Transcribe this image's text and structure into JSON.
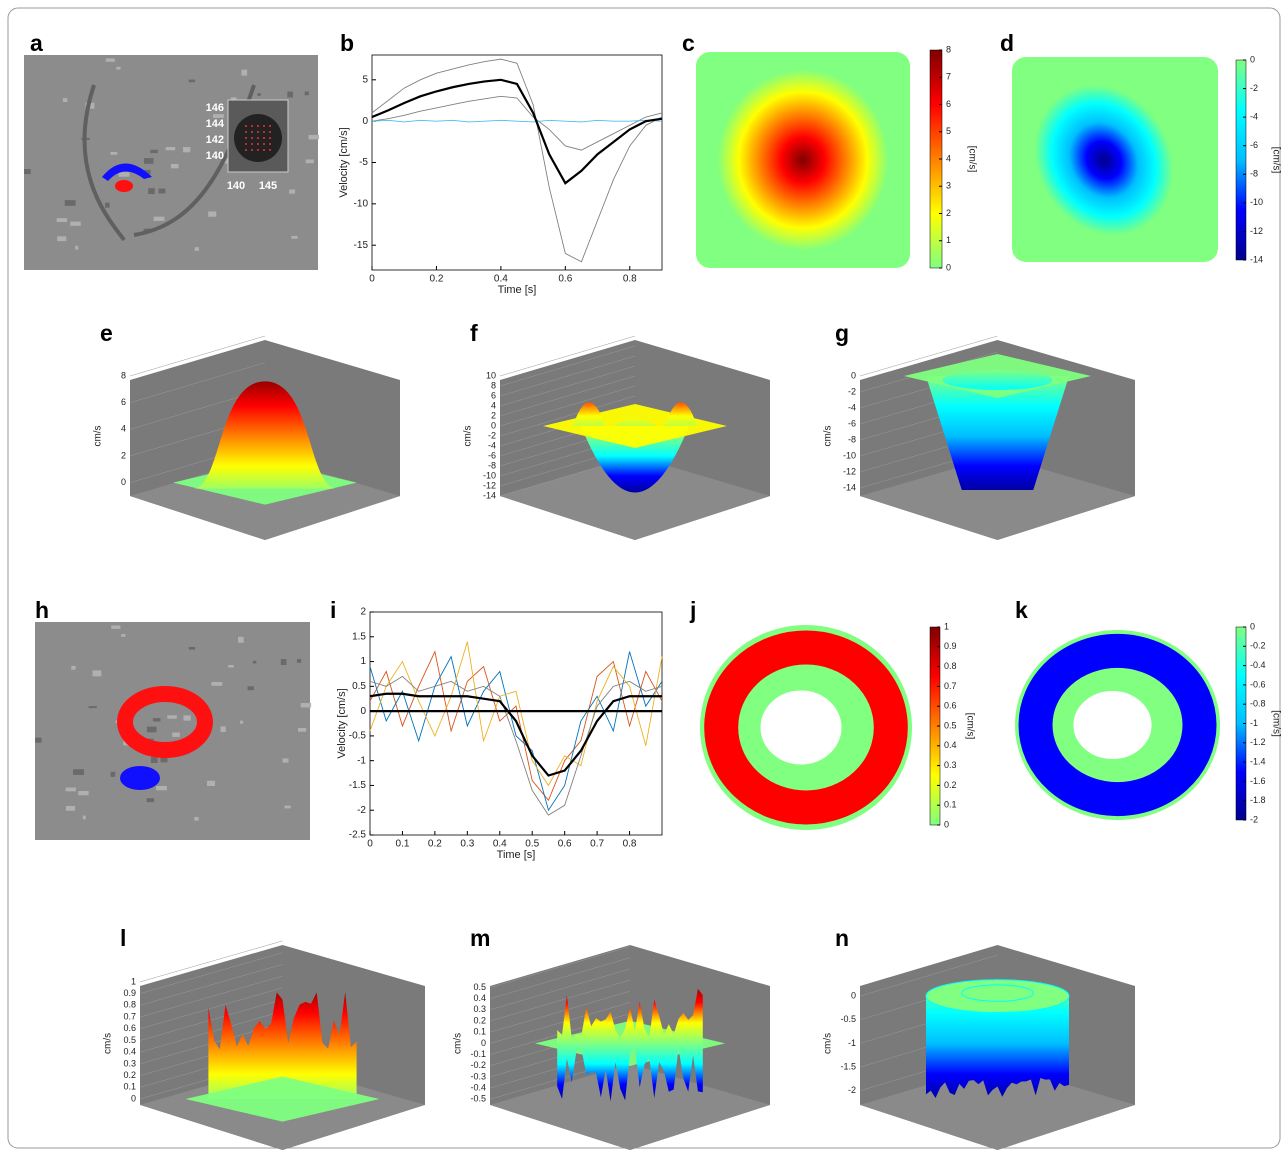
{
  "chart_data": [
    {
      "type": "image",
      "label": "a",
      "inset_xticks": [
        140,
        145
      ],
      "inset_yticks": [
        146,
        144,
        142,
        140
      ]
    },
    {
      "type": "line",
      "label": "b",
      "xlabel": "Time [s]",
      "ylabel": "Velocity [cm/s]",
      "xlim": [
        0,
        0.9
      ],
      "ylim": [
        -18,
        8
      ],
      "xticks": [
        0,
        0.2,
        0.4,
        0.6,
        0.8
      ],
      "yticks": [
        -15,
        -10,
        -5,
        0,
        5
      ],
      "x": [
        0,
        0.05,
        0.1,
        0.15,
        0.2,
        0.25,
        0.3,
        0.35,
        0.4,
        0.45,
        0.5,
        0.55,
        0.6,
        0.65,
        0.7,
        0.75,
        0.8,
        0.85,
        0.9
      ],
      "series": [
        {
          "color": "#808080",
          "values": [
            1,
            2.5,
            4,
            5,
            5.8,
            6.3,
            6.8,
            7.2,
            7.5,
            7,
            2,
            -8,
            -16,
            -17,
            -12,
            -7,
            -3,
            -0.5,
            0.5
          ]
        },
        {
          "color": "#808080",
          "values": [
            0,
            0.3,
            0.7,
            1.2,
            1.6,
            2,
            2.4,
            2.7,
            3,
            2.8,
            0.5,
            -1,
            -3,
            -3.5,
            -2.5,
            -1.5,
            -0.5,
            0.5,
            1
          ]
        },
        {
          "color": "#4dbeee",
          "values": [
            0,
            0.1,
            -0.1,
            0.1,
            0,
            0.1,
            -0.1,
            0,
            0.1,
            0,
            -0.1,
            0.1,
            0,
            -0.1,
            0.1,
            0,
            0,
            0.1,
            0
          ]
        },
        {
          "color": "#000000",
          "values": [
            0.5,
            1.3,
            2.2,
            3,
            3.6,
            4.1,
            4.5,
            4.8,
            5,
            4.5,
            1,
            -4,
            -7.5,
            -6,
            -4,
            -2.5,
            -1,
            0,
            0.3
          ]
        }
      ]
    },
    {
      "type": "heatmap",
      "label": "c",
      "colorbar_label": "[cm/s]",
      "clim": [
        0,
        8
      ],
      "cticks": [
        0,
        1,
        2,
        3,
        4,
        5,
        6,
        7,
        8
      ],
      "colormap": [
        "#80ff80",
        "#ffff00",
        "#ff8000",
        "#ff0000",
        "#800000"
      ]
    },
    {
      "type": "heatmap",
      "label": "d",
      "colorbar_label": "[cm/s]",
      "clim": [
        -14,
        0
      ],
      "cticks": [
        -14,
        -12,
        -10,
        -8,
        -6,
        -4,
        -2,
        0
      ],
      "colormap": [
        "#00008b",
        "#0000ff",
        "#00bfff",
        "#00ffff",
        "#80ff80"
      ]
    },
    {
      "type": "surface",
      "label": "e",
      "zlabel": "cm/s",
      "zlim": [
        -1,
        8
      ],
      "zticks": [
        0,
        2,
        4,
        6,
        8
      ],
      "colormap": [
        "#80ff80",
        "#ffff00",
        "#ff8000",
        "#ff0000",
        "#800000"
      ]
    },
    {
      "type": "surface",
      "label": "f",
      "zlabel": "cm/s",
      "zlim": [
        -14,
        10
      ],
      "zticks": [
        10,
        8,
        6,
        4,
        2,
        0,
        -2,
        -4,
        -6,
        -8,
        -10,
        -12,
        -14
      ],
      "colormap": [
        "#00008b",
        "#0000ff",
        "#00ffff",
        "#80ff80",
        "#ffff00",
        "#ff0000",
        "#800000"
      ]
    },
    {
      "type": "surface",
      "label": "g",
      "zlabel": "cm/s",
      "zlim": [
        -15,
        0
      ],
      "zticks": [
        0,
        -2,
        -4,
        -6,
        -8,
        -10,
        -12,
        -14
      ],
      "colormap": [
        "#00008b",
        "#0000ff",
        "#00bfff",
        "#00ffff",
        "#80ff80"
      ]
    },
    {
      "type": "image",
      "label": "h"
    },
    {
      "type": "line",
      "label": "i",
      "xlabel": "Time [s]",
      "ylabel": "Velocity [cm/s]",
      "xlim": [
        0,
        0.9
      ],
      "ylim": [
        -2.5,
        2
      ],
      "xticks": [
        0,
        0.1,
        0.2,
        0.3,
        0.4,
        0.5,
        0.6,
        0.7,
        0.8
      ],
      "yticks": [
        -2.5,
        -2,
        -1.5,
        -1,
        -0.5,
        0,
        0.5,
        1,
        1.5,
        2
      ],
      "x": [
        0,
        0.05,
        0.1,
        0.15,
        0.2,
        0.25,
        0.3,
        0.35,
        0.4,
        0.45,
        0.5,
        0.55,
        0.6,
        0.65,
        0.7,
        0.75,
        0.8,
        0.85,
        0.9
      ],
      "series": [
        {
          "color": "#d95319",
          "values": [
            0.2,
            0.8,
            -0.3,
            0.5,
            1.2,
            -0.4,
            0.6,
            0.9,
            -0.2,
            0.1,
            -1.4,
            -1.8,
            -1,
            -0.6,
            0.7,
            1,
            -0.3,
            0.8,
            0.2
          ]
        },
        {
          "color": "#0072bd",
          "values": [
            0.9,
            -0.2,
            0.4,
            -0.6,
            0.5,
            1.1,
            -0.3,
            0.4,
            0.8,
            -0.5,
            -0.8,
            -2,
            -1.5,
            -0.2,
            0.3,
            -0.4,
            1.2,
            0.1,
            0.6
          ]
        },
        {
          "color": "#edb120",
          "values": [
            -0.4,
            0.5,
            1,
            0.2,
            -0.5,
            0.3,
            1.4,
            -0.6,
            0.3,
            0.4,
            -1,
            -1.5,
            -0.9,
            -1.1,
            0.2,
            0.9,
            0.5,
            -0.7,
            1.1
          ]
        },
        {
          "color": "#808080",
          "values": [
            0.6,
            0.5,
            0.7,
            0.4,
            0.5,
            0.6,
            0.4,
            0.5,
            0.3,
            -0.6,
            -1.6,
            -2.1,
            -1.9,
            -0.9,
            0.1,
            0.5,
            0.6,
            0.4,
            0.5
          ]
        },
        {
          "color": "#000000",
          "values": [
            0,
            0,
            0,
            0,
            0,
            0,
            0,
            0,
            0,
            0,
            0,
            0,
            0,
            0,
            0,
            0,
            0,
            0,
            0
          ]
        },
        {
          "color": "#000000",
          "values": [
            0.3,
            0.35,
            0.35,
            0.3,
            0.3,
            0.3,
            0.3,
            0.25,
            0.2,
            -0.2,
            -0.9,
            -1.3,
            -1.2,
            -0.8,
            -0.2,
            0.2,
            0.3,
            0.3,
            0.3
          ]
        }
      ]
    },
    {
      "type": "heatmap",
      "label": "j",
      "colorbar_label": "[cm/s]",
      "clim": [
        0,
        1
      ],
      "cticks": [
        0,
        0.1,
        0.2,
        0.3,
        0.4,
        0.5,
        0.6,
        0.7,
        0.8,
        0.9,
        1
      ],
      "colormap": [
        "#80ff80",
        "#ffff00",
        "#ff8000",
        "#ff0000",
        "#800000"
      ]
    },
    {
      "type": "heatmap",
      "label": "k",
      "colorbar_label": "[cm/s]",
      "clim": [
        -2,
        0
      ],
      "cticks": [
        -2,
        -1.8,
        -1.6,
        -1.4,
        -1.2,
        -1,
        -0.8,
        -0.6,
        -0.4,
        -0.2,
        0
      ],
      "colormap": [
        "#00008b",
        "#0000ff",
        "#00bfff",
        "#00ffff",
        "#80ff80"
      ]
    },
    {
      "type": "surface",
      "label": "l",
      "zlabel": "cm/s",
      "zlim": [
        -0.05,
        1
      ],
      "zticks": [
        0,
        0.1,
        0.2,
        0.3,
        0.4,
        0.5,
        0.6,
        0.7,
        0.8,
        0.9,
        1
      ],
      "colormap": [
        "#80ff80",
        "#ffff00",
        "#ff8000",
        "#ff0000",
        "#800000"
      ]
    },
    {
      "type": "surface",
      "label": "m",
      "zlabel": "cm/s",
      "zlim": [
        -0.55,
        0.55
      ],
      "zticks": [
        0.5,
        0.4,
        0.3,
        0.2,
        0.1,
        0,
        -0.1,
        -0.2,
        -0.3,
        -0.4,
        -0.5
      ],
      "colormap": [
        "#00008b",
        "#0000ff",
        "#00ffff",
        "#80ff80",
        "#ffff00",
        "#ff0000",
        "#800000"
      ]
    },
    {
      "type": "surface",
      "label": "n",
      "zlabel": "cm/s",
      "zlim": [
        -2.3,
        0.3
      ],
      "zticks": [
        0,
        -0.5,
        -1,
        -1.5,
        -2
      ],
      "colormap": [
        "#00008b",
        "#0000ff",
        "#00bfff",
        "#00ffff",
        "#80ff80"
      ]
    }
  ]
}
